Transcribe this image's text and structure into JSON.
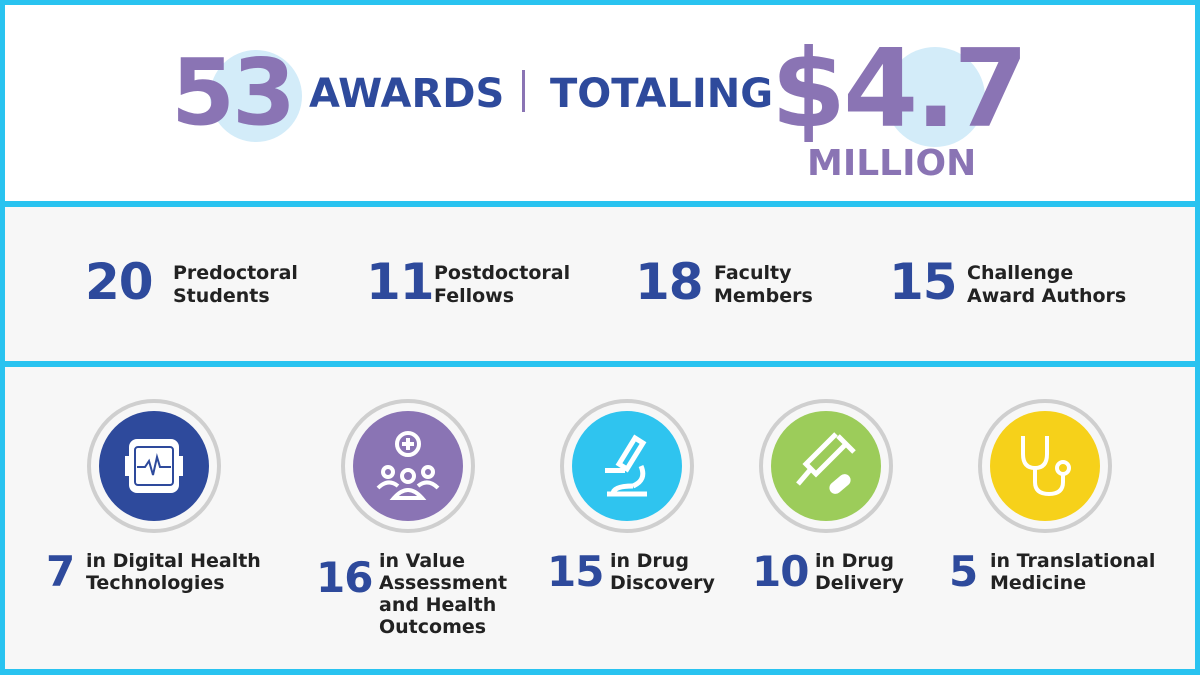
{
  "headline": {
    "awards_count": "53",
    "awards_label": "AWARDS",
    "separator": "|",
    "totaling_label": "TOTALING",
    "amount": "$4.7",
    "amount_unit": "MILLION"
  },
  "recipients": [
    {
      "count": "20",
      "line1": "Predoctoral",
      "line2": "Students"
    },
    {
      "count": "11",
      "line1": "Postdoctoral",
      "line2": "Fellows"
    },
    {
      "count": "18",
      "line1": "Faculty",
      "line2": "Members"
    },
    {
      "count": "15",
      "line1": "Challenge",
      "line2": "Award Authors"
    }
  ],
  "areas": [
    {
      "count": "7",
      "lines": [
        "in Digital Health",
        "Technologies"
      ],
      "icon": "smartwatch-heartbeat-icon",
      "color": "#2e4a9c"
    },
    {
      "count": "16",
      "lines": [
        "in Value",
        "Assessment",
        "and Health",
        "Outcomes"
      ],
      "icon": "people-medical-cross-icon",
      "color": "#8a74b4"
    },
    {
      "count": "15",
      "lines": [
        "in Drug",
        "Discovery"
      ],
      "icon": "microscope-icon",
      "color": "#2fc4ef"
    },
    {
      "count": "10",
      "lines": [
        "in Drug",
        "Delivery"
      ],
      "icon": "syringe-pill-icon",
      "color": "#9ccc5a"
    },
    {
      "count": "5",
      "lines": [
        "in Translational",
        "Medicine"
      ],
      "icon": "stethoscope-icon",
      "color": "#f6d11a"
    }
  ],
  "colors": {
    "frame": "#29c3f0",
    "navy": "#2e4a9c",
    "purple": "#8a74b4",
    "highlight": "#d3ecf9"
  }
}
